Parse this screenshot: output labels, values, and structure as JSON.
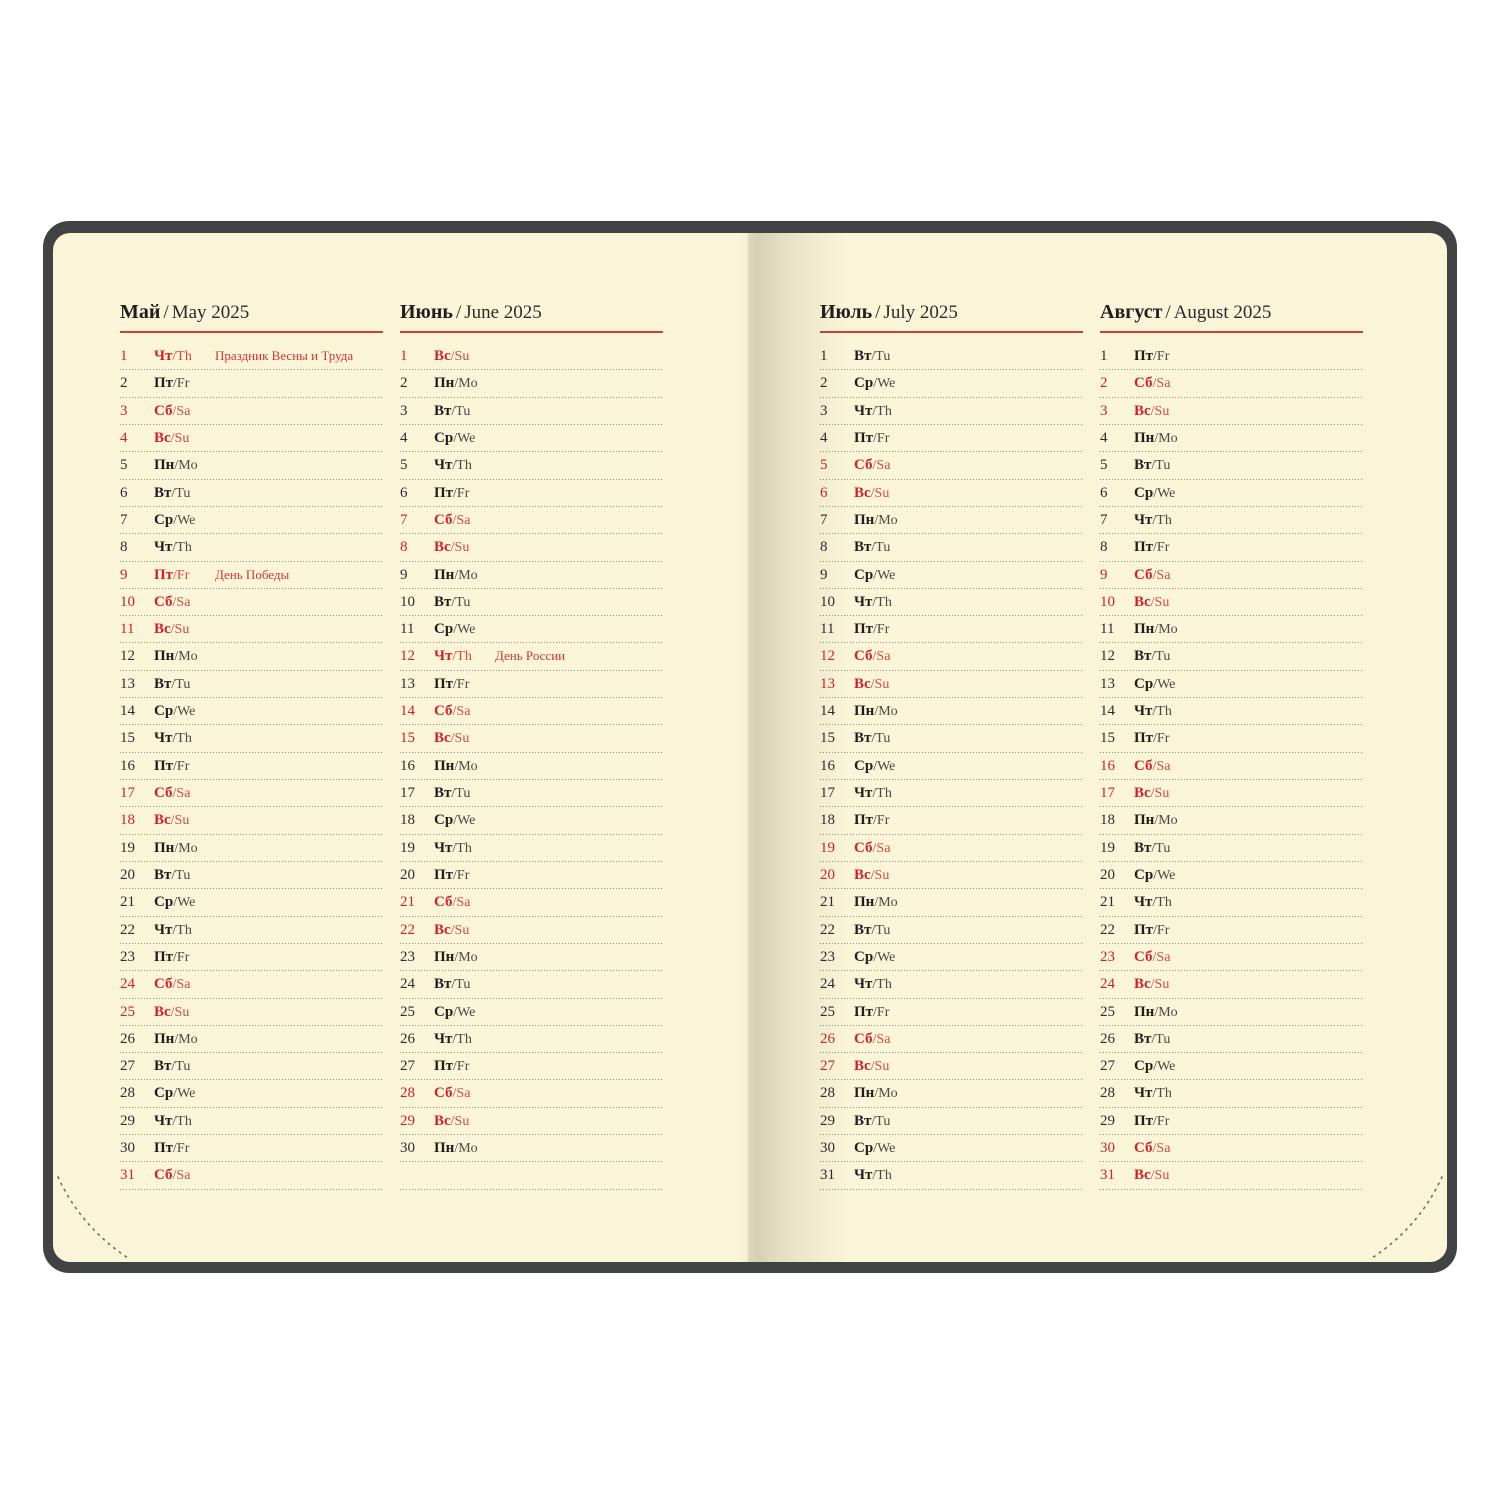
{
  "notebook": {
    "colors": {
      "cover": "#414243",
      "paper": "#faf4d9",
      "accent_red": "#c9242b",
      "text_black": "#1f1e1b",
      "dotted_rule": "#8d8973"
    },
    "months": [
      {
        "title_ru": "Май",
        "title_sep": "/",
        "title_en": "May 2025",
        "days": [
          {
            "n": 1,
            "ru": "Чт",
            "en": "Th",
            "red": true,
            "note": "Праздник Весны и Труда"
          },
          {
            "n": 2,
            "ru": "Пт",
            "en": "Fr"
          },
          {
            "n": 3,
            "ru": "Сб",
            "en": "Sa",
            "red": true
          },
          {
            "n": 4,
            "ru": "Вс",
            "en": "Su",
            "red": true
          },
          {
            "n": 5,
            "ru": "Пн",
            "en": "Mo"
          },
          {
            "n": 6,
            "ru": "Вт",
            "en": "Tu"
          },
          {
            "n": 7,
            "ru": "Ср",
            "en": "We"
          },
          {
            "n": 8,
            "ru": "Чт",
            "en": "Th"
          },
          {
            "n": 9,
            "ru": "Пт",
            "en": "Fr",
            "red": true,
            "note": "День Победы"
          },
          {
            "n": 10,
            "ru": "Сб",
            "en": "Sa",
            "red": true
          },
          {
            "n": 11,
            "ru": "Вс",
            "en": "Su",
            "red": true
          },
          {
            "n": 12,
            "ru": "Пн",
            "en": "Mo"
          },
          {
            "n": 13,
            "ru": "Вт",
            "en": "Tu"
          },
          {
            "n": 14,
            "ru": "Ср",
            "en": "We"
          },
          {
            "n": 15,
            "ru": "Чт",
            "en": "Th"
          },
          {
            "n": 16,
            "ru": "Пт",
            "en": "Fr"
          },
          {
            "n": 17,
            "ru": "Сб",
            "en": "Sa",
            "red": true
          },
          {
            "n": 18,
            "ru": "Вс",
            "en": "Su",
            "red": true
          },
          {
            "n": 19,
            "ru": "Пн",
            "en": "Mo"
          },
          {
            "n": 20,
            "ru": "Вт",
            "en": "Tu"
          },
          {
            "n": 21,
            "ru": "Ср",
            "en": "We"
          },
          {
            "n": 22,
            "ru": "Чт",
            "en": "Th"
          },
          {
            "n": 23,
            "ru": "Пт",
            "en": "Fr"
          },
          {
            "n": 24,
            "ru": "Сб",
            "en": "Sa",
            "red": true
          },
          {
            "n": 25,
            "ru": "Вс",
            "en": "Su",
            "red": true
          },
          {
            "n": 26,
            "ru": "Пн",
            "en": "Mo"
          },
          {
            "n": 27,
            "ru": "Вт",
            "en": "Tu"
          },
          {
            "n": 28,
            "ru": "Ср",
            "en": "We"
          },
          {
            "n": 29,
            "ru": "Чт",
            "en": "Th"
          },
          {
            "n": 30,
            "ru": "Пт",
            "en": "Fr"
          },
          {
            "n": 31,
            "ru": "Сб",
            "en": "Sa",
            "red": true
          }
        ]
      },
      {
        "title_ru": "Июнь",
        "title_sep": "/",
        "title_en": "June 2025",
        "days": [
          {
            "n": 1,
            "ru": "Вс",
            "en": "Su",
            "red": true
          },
          {
            "n": 2,
            "ru": "Пн",
            "en": "Mo"
          },
          {
            "n": 3,
            "ru": "Вт",
            "en": "Tu"
          },
          {
            "n": 4,
            "ru": "Ср",
            "en": "We"
          },
          {
            "n": 5,
            "ru": "Чт",
            "en": "Th"
          },
          {
            "n": 6,
            "ru": "Пт",
            "en": "Fr"
          },
          {
            "n": 7,
            "ru": "Сб",
            "en": "Sa",
            "red": true
          },
          {
            "n": 8,
            "ru": "Вс",
            "en": "Su",
            "red": true
          },
          {
            "n": 9,
            "ru": "Пн",
            "en": "Mo"
          },
          {
            "n": 10,
            "ru": "Вт",
            "en": "Tu"
          },
          {
            "n": 11,
            "ru": "Ср",
            "en": "We"
          },
          {
            "n": 12,
            "ru": "Чт",
            "en": "Th",
            "red": true,
            "note": "День России"
          },
          {
            "n": 13,
            "ru": "Пт",
            "en": "Fr"
          },
          {
            "n": 14,
            "ru": "Сб",
            "en": "Sa",
            "red": true
          },
          {
            "n": 15,
            "ru": "Вс",
            "en": "Su",
            "red": true
          },
          {
            "n": 16,
            "ru": "Пн",
            "en": "Mo"
          },
          {
            "n": 17,
            "ru": "Вт",
            "en": "Tu"
          },
          {
            "n": 18,
            "ru": "Ср",
            "en": "We"
          },
          {
            "n": 19,
            "ru": "Чт",
            "en": "Th"
          },
          {
            "n": 20,
            "ru": "Пт",
            "en": "Fr"
          },
          {
            "n": 21,
            "ru": "Сб",
            "en": "Sa",
            "red": true
          },
          {
            "n": 22,
            "ru": "Вс",
            "en": "Su",
            "red": true
          },
          {
            "n": 23,
            "ru": "Пн",
            "en": "Mo"
          },
          {
            "n": 24,
            "ru": "Вт",
            "en": "Tu"
          },
          {
            "n": 25,
            "ru": "Ср",
            "en": "We"
          },
          {
            "n": 26,
            "ru": "Чт",
            "en": "Th"
          },
          {
            "n": 27,
            "ru": "Пт",
            "en": "Fr"
          },
          {
            "n": 28,
            "ru": "Сб",
            "en": "Sa",
            "red": true
          },
          {
            "n": 29,
            "ru": "Вс",
            "en": "Su",
            "red": true
          },
          {
            "n": 30,
            "ru": "Пн",
            "en": "Mo"
          }
        ]
      },
      {
        "title_ru": "Июль",
        "title_sep": "/",
        "title_en": "July 2025",
        "days": [
          {
            "n": 1,
            "ru": "Вт",
            "en": "Tu"
          },
          {
            "n": 2,
            "ru": "Ср",
            "en": "We"
          },
          {
            "n": 3,
            "ru": "Чт",
            "en": "Th"
          },
          {
            "n": 4,
            "ru": "Пт",
            "en": "Fr"
          },
          {
            "n": 5,
            "ru": "Сб",
            "en": "Sa",
            "red": true
          },
          {
            "n": 6,
            "ru": "Вс",
            "en": "Su",
            "red": true
          },
          {
            "n": 7,
            "ru": "Пн",
            "en": "Mo"
          },
          {
            "n": 8,
            "ru": "Вт",
            "en": "Tu"
          },
          {
            "n": 9,
            "ru": "Ср",
            "en": "We"
          },
          {
            "n": 10,
            "ru": "Чт",
            "en": "Th"
          },
          {
            "n": 11,
            "ru": "Пт",
            "en": "Fr"
          },
          {
            "n": 12,
            "ru": "Сб",
            "en": "Sa",
            "red": true
          },
          {
            "n": 13,
            "ru": "Вс",
            "en": "Su",
            "red": true
          },
          {
            "n": 14,
            "ru": "Пн",
            "en": "Mo"
          },
          {
            "n": 15,
            "ru": "Вт",
            "en": "Tu"
          },
          {
            "n": 16,
            "ru": "Ср",
            "en": "We"
          },
          {
            "n": 17,
            "ru": "Чт",
            "en": "Th"
          },
          {
            "n": 18,
            "ru": "Пт",
            "en": "Fr"
          },
          {
            "n": 19,
            "ru": "Сб",
            "en": "Sa",
            "red": true
          },
          {
            "n": 20,
            "ru": "Вс",
            "en": "Su",
            "red": true
          },
          {
            "n": 21,
            "ru": "Пн",
            "en": "Mo"
          },
          {
            "n": 22,
            "ru": "Вт",
            "en": "Tu"
          },
          {
            "n": 23,
            "ru": "Ср",
            "en": "We"
          },
          {
            "n": 24,
            "ru": "Чт",
            "en": "Th"
          },
          {
            "n": 25,
            "ru": "Пт",
            "en": "Fr"
          },
          {
            "n": 26,
            "ru": "Сб",
            "en": "Sa",
            "red": true
          },
          {
            "n": 27,
            "ru": "Вс",
            "en": "Su",
            "red": true
          },
          {
            "n": 28,
            "ru": "Пн",
            "en": "Mo"
          },
          {
            "n": 29,
            "ru": "Вт",
            "en": "Tu"
          },
          {
            "n": 30,
            "ru": "Ср",
            "en": "We"
          },
          {
            "n": 31,
            "ru": "Чт",
            "en": "Th"
          }
        ]
      },
      {
        "title_ru": "Август",
        "title_sep": "/",
        "title_en": "August 2025",
        "days": [
          {
            "n": 1,
            "ru": "Пт",
            "en": "Fr"
          },
          {
            "n": 2,
            "ru": "Сб",
            "en": "Sa",
            "red": true
          },
          {
            "n": 3,
            "ru": "Вс",
            "en": "Su",
            "red": true
          },
          {
            "n": 4,
            "ru": "Пн",
            "en": "Mo"
          },
          {
            "n": 5,
            "ru": "Вт",
            "en": "Tu"
          },
          {
            "n": 6,
            "ru": "Ср",
            "en": "We"
          },
          {
            "n": 7,
            "ru": "Чт",
            "en": "Th"
          },
          {
            "n": 8,
            "ru": "Пт",
            "en": "Fr"
          },
          {
            "n": 9,
            "ru": "Сб",
            "en": "Sa",
            "red": true
          },
          {
            "n": 10,
            "ru": "Вс",
            "en": "Su",
            "red": true
          },
          {
            "n": 11,
            "ru": "Пн",
            "en": "Mo"
          },
          {
            "n": 12,
            "ru": "Вт",
            "en": "Tu"
          },
          {
            "n": 13,
            "ru": "Ср",
            "en": "We"
          },
          {
            "n": 14,
            "ru": "Чт",
            "en": "Th"
          },
          {
            "n": 15,
            "ru": "Пт",
            "en": "Fr"
          },
          {
            "n": 16,
            "ru": "Сб",
            "en": "Sa",
            "red": true
          },
          {
            "n": 17,
            "ru": "Вс",
            "en": "Su",
            "red": true
          },
          {
            "n": 18,
            "ru": "Пн",
            "en": "Mo"
          },
          {
            "n": 19,
            "ru": "Вт",
            "en": "Tu"
          },
          {
            "n": 20,
            "ru": "Ср",
            "en": "We"
          },
          {
            "n": 21,
            "ru": "Чт",
            "en": "Th"
          },
          {
            "n": 22,
            "ru": "Пт",
            "en": "Fr"
          },
          {
            "n": 23,
            "ru": "Сб",
            "en": "Sa",
            "red": true
          },
          {
            "n": 24,
            "ru": "Вс",
            "en": "Su",
            "red": true
          },
          {
            "n": 25,
            "ru": "Пн",
            "en": "Mo"
          },
          {
            "n": 26,
            "ru": "Вт",
            "en": "Tu"
          },
          {
            "n": 27,
            "ru": "Ср",
            "en": "We"
          },
          {
            "n": 28,
            "ru": "Чт",
            "en": "Th"
          },
          {
            "n": 29,
            "ru": "Пт",
            "en": "Fr"
          },
          {
            "n": 30,
            "ru": "Сб",
            "en": "Sa",
            "red": true
          },
          {
            "n": 31,
            "ru": "Вс",
            "en": "Su",
            "red": true
          }
        ]
      }
    ]
  }
}
